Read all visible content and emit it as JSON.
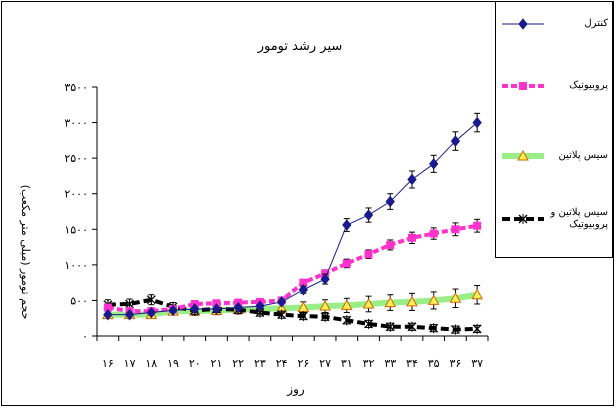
{
  "chart_data": {
    "type": "line",
    "title": "سیر رشد تومور",
    "xlabel": "روز",
    "ylabel": "حجم تومور (میلی متر مکعب)",
    "categories": [
      "۱۶",
      "۱۷",
      "۱۸",
      "۱۹",
      "۲۰",
      "۲۱",
      "۲۲",
      "۲۳",
      "۲۴",
      "۲۶",
      "۲۷",
      "۳۱",
      "۳۲",
      "۳۳",
      "۳۴",
      "۳۵",
      "۳۶",
      "۳۷"
    ],
    "yticks": [
      "۰",
      "۵۰۰",
      "۱۰۰۰",
      "۱۵۰۰",
      "۲۰۰۰",
      "۲۵۰۰",
      "۳۰۰۰",
      "۳۵۰۰"
    ],
    "ylim": [
      0,
      3500
    ],
    "grid": false,
    "legend_position": "top-right",
    "series": [
      {
        "name": "کنترل",
        "color": "#1a1a8c",
        "marker": "diamond",
        "values": [
          300,
          300,
          330,
          360,
          380,
          380,
          400,
          420,
          480,
          650,
          800,
          1560,
          1700,
          1890,
          2200,
          2420,
          2740,
          3000
        ],
        "errors": [
          0,
          0,
          0,
          0,
          0,
          0,
          0,
          0,
          0,
          50,
          70,
          90,
          100,
          110,
          120,
          120,
          130,
          130
        ]
      },
      {
        "name": "پروبیوتیک",
        "color": "#ff33cc",
        "marker": "square",
        "values": [
          400,
          350,
          350,
          380,
          450,
          460,
          470,
          480,
          500,
          750,
          880,
          1020,
          1150,
          1280,
          1380,
          1440,
          1500,
          1550
        ],
        "errors": [
          0,
          0,
          0,
          0,
          0,
          0,
          0,
          0,
          0,
          0,
          50,
          60,
          60,
          70,
          80,
          80,
          90,
          90
        ]
      },
      {
        "name": "سیس پلاتین",
        "color": "#99ee88",
        "marker": "triangle",
        "values": [
          300,
          300,
          300,
          350,
          350,
          360,
          370,
          380,
          390,
          400,
          420,
          430,
          450,
          470,
          480,
          500,
          530,
          580
        ],
        "errors": [
          50,
          50,
          50,
          50,
          60,
          60,
          60,
          70,
          70,
          80,
          90,
          100,
          110,
          110,
          120,
          120,
          130,
          130
        ]
      },
      {
        "name": "سیس پلاتین و پروبیوتیک",
        "color": "#000000",
        "marker": "x",
        "values": [
          440,
          450,
          510,
          410,
          360,
          380,
          370,
          330,
          300,
          280,
          270,
          220,
          170,
          130,
          130,
          110,
          90,
          100
        ],
        "errors": [
          70,
          70,
          70,
          60,
          60,
          50,
          50,
          50,
          50,
          50,
          50,
          50,
          50,
          50,
          50,
          50,
          50,
          50
        ]
      }
    ]
  }
}
